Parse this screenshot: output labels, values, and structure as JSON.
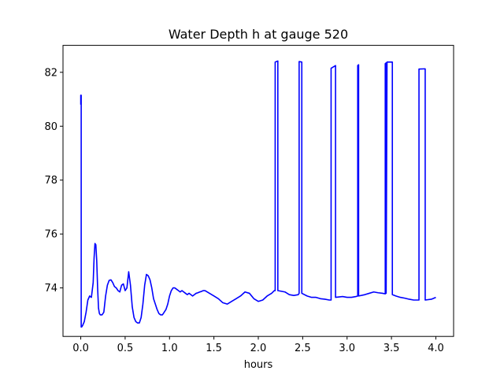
{
  "chart_data": {
    "type": "line",
    "title": "Water Depth h at gauge 520",
    "xlabel": "hours",
    "ylabel": "",
    "xlim": [
      -0.2,
      4.2
    ],
    "ylim": [
      72.2,
      83.0
    ],
    "xticks": [
      0.0,
      0.5,
      1.0,
      1.5,
      2.0,
      2.5,
      3.0,
      3.5,
      4.0
    ],
    "xtick_labels": [
      "0.0",
      "0.5",
      "1.0",
      "1.5",
      "2.0",
      "2.5",
      "3.0",
      "3.5",
      "4.0"
    ],
    "yticks": [
      74,
      76,
      78,
      80,
      82
    ],
    "ytick_labels": [
      "74",
      "76",
      "78",
      "80",
      "82"
    ],
    "grid": false,
    "series": [
      {
        "color": "#0000ff",
        "x": [
          0.0,
          0.0,
          0.005,
          0.005,
          0.01,
          0.02,
          0.04,
          0.06,
          0.08,
          0.1,
          0.12,
          0.14,
          0.15,
          0.16,
          0.17,
          0.18,
          0.19,
          0.2,
          0.21,
          0.22,
          0.23,
          0.24,
          0.26,
          0.28,
          0.3,
          0.32,
          0.34,
          0.36,
          0.38,
          0.4,
          0.42,
          0.44,
          0.46,
          0.48,
          0.5,
          0.52,
          0.54,
          0.56,
          0.58,
          0.6,
          0.62,
          0.64,
          0.66,
          0.68,
          0.7,
          0.72,
          0.74,
          0.76,
          0.78,
          0.8,
          0.82,
          0.84,
          0.86,
          0.88,
          0.9,
          0.92,
          0.94,
          0.96,
          0.98,
          1.0,
          1.02,
          1.04,
          1.06,
          1.08,
          1.1,
          1.12,
          1.14,
          1.16,
          1.18,
          1.2,
          1.22,
          1.24,
          1.26,
          1.28,
          1.3,
          1.32,
          1.34,
          1.36,
          1.38,
          1.4,
          1.45,
          1.5,
          1.55,
          1.6,
          1.65,
          1.7,
          1.75,
          1.8,
          1.85,
          1.9,
          1.95,
          2.0,
          2.05,
          2.1,
          2.15,
          2.18,
          2.19,
          2.19,
          2.22,
          2.22,
          2.3,
          2.35,
          2.4,
          2.45,
          2.46,
          2.46,
          2.49,
          2.49,
          2.55,
          2.6,
          2.65,
          2.7,
          2.75,
          2.8,
          2.82,
          2.82,
          2.87,
          2.87,
          2.95,
          3.0,
          3.05,
          3.1,
          3.12,
          3.12,
          3.13,
          3.13,
          3.2,
          3.25,
          3.3,
          3.35,
          3.4,
          3.43,
          3.43,
          3.44,
          3.44,
          3.45,
          3.45,
          3.51,
          3.51,
          3.55,
          3.6,
          3.65,
          3.7,
          3.75,
          3.8,
          3.81,
          3.81,
          3.88,
          3.88,
          3.95,
          4.0
        ],
        "y": [
          80.8,
          81.15,
          81.15,
          72.55,
          72.55,
          72.6,
          72.75,
          73.1,
          73.55,
          73.7,
          73.65,
          74.2,
          75.1,
          75.65,
          75.6,
          75.0,
          74.0,
          73.25,
          73.05,
          73.0,
          73.0,
          73.0,
          73.1,
          73.7,
          74.1,
          74.28,
          74.3,
          74.2,
          74.05,
          74.0,
          73.9,
          73.85,
          74.1,
          74.15,
          73.9,
          74.0,
          74.6,
          74.1,
          73.3,
          72.9,
          72.75,
          72.7,
          72.7,
          72.9,
          73.4,
          74.1,
          74.5,
          74.45,
          74.3,
          74.0,
          73.6,
          73.4,
          73.2,
          73.05,
          73.0,
          73.0,
          73.1,
          73.2,
          73.4,
          73.7,
          73.9,
          74.0,
          74.0,
          73.95,
          73.9,
          73.85,
          73.9,
          73.85,
          73.8,
          73.75,
          73.8,
          73.75,
          73.7,
          73.75,
          73.8,
          73.82,
          73.85,
          73.87,
          73.9,
          73.9,
          73.8,
          73.7,
          73.6,
          73.45,
          73.4,
          73.5,
          73.6,
          73.7,
          73.85,
          73.8,
          73.6,
          73.5,
          73.55,
          73.7,
          73.8,
          73.9,
          73.9,
          82.38,
          82.42,
          73.9,
          73.85,
          73.75,
          73.72,
          73.75,
          73.8,
          82.4,
          82.38,
          73.8,
          73.7,
          73.65,
          73.65,
          73.6,
          73.58,
          73.55,
          73.55,
          82.15,
          82.25,
          73.65,
          73.68,
          73.65,
          73.65,
          73.68,
          73.7,
          82.25,
          82.28,
          73.7,
          73.75,
          73.8,
          73.85,
          73.82,
          73.8,
          73.78,
          82.32,
          82.35,
          73.8,
          82.35,
          82.38,
          82.38,
          73.75,
          73.7,
          73.65,
          73.62,
          73.58,
          73.55,
          73.55,
          73.55,
          82.12,
          82.13,
          73.55,
          73.58,
          73.65
        ]
      }
    ]
  }
}
